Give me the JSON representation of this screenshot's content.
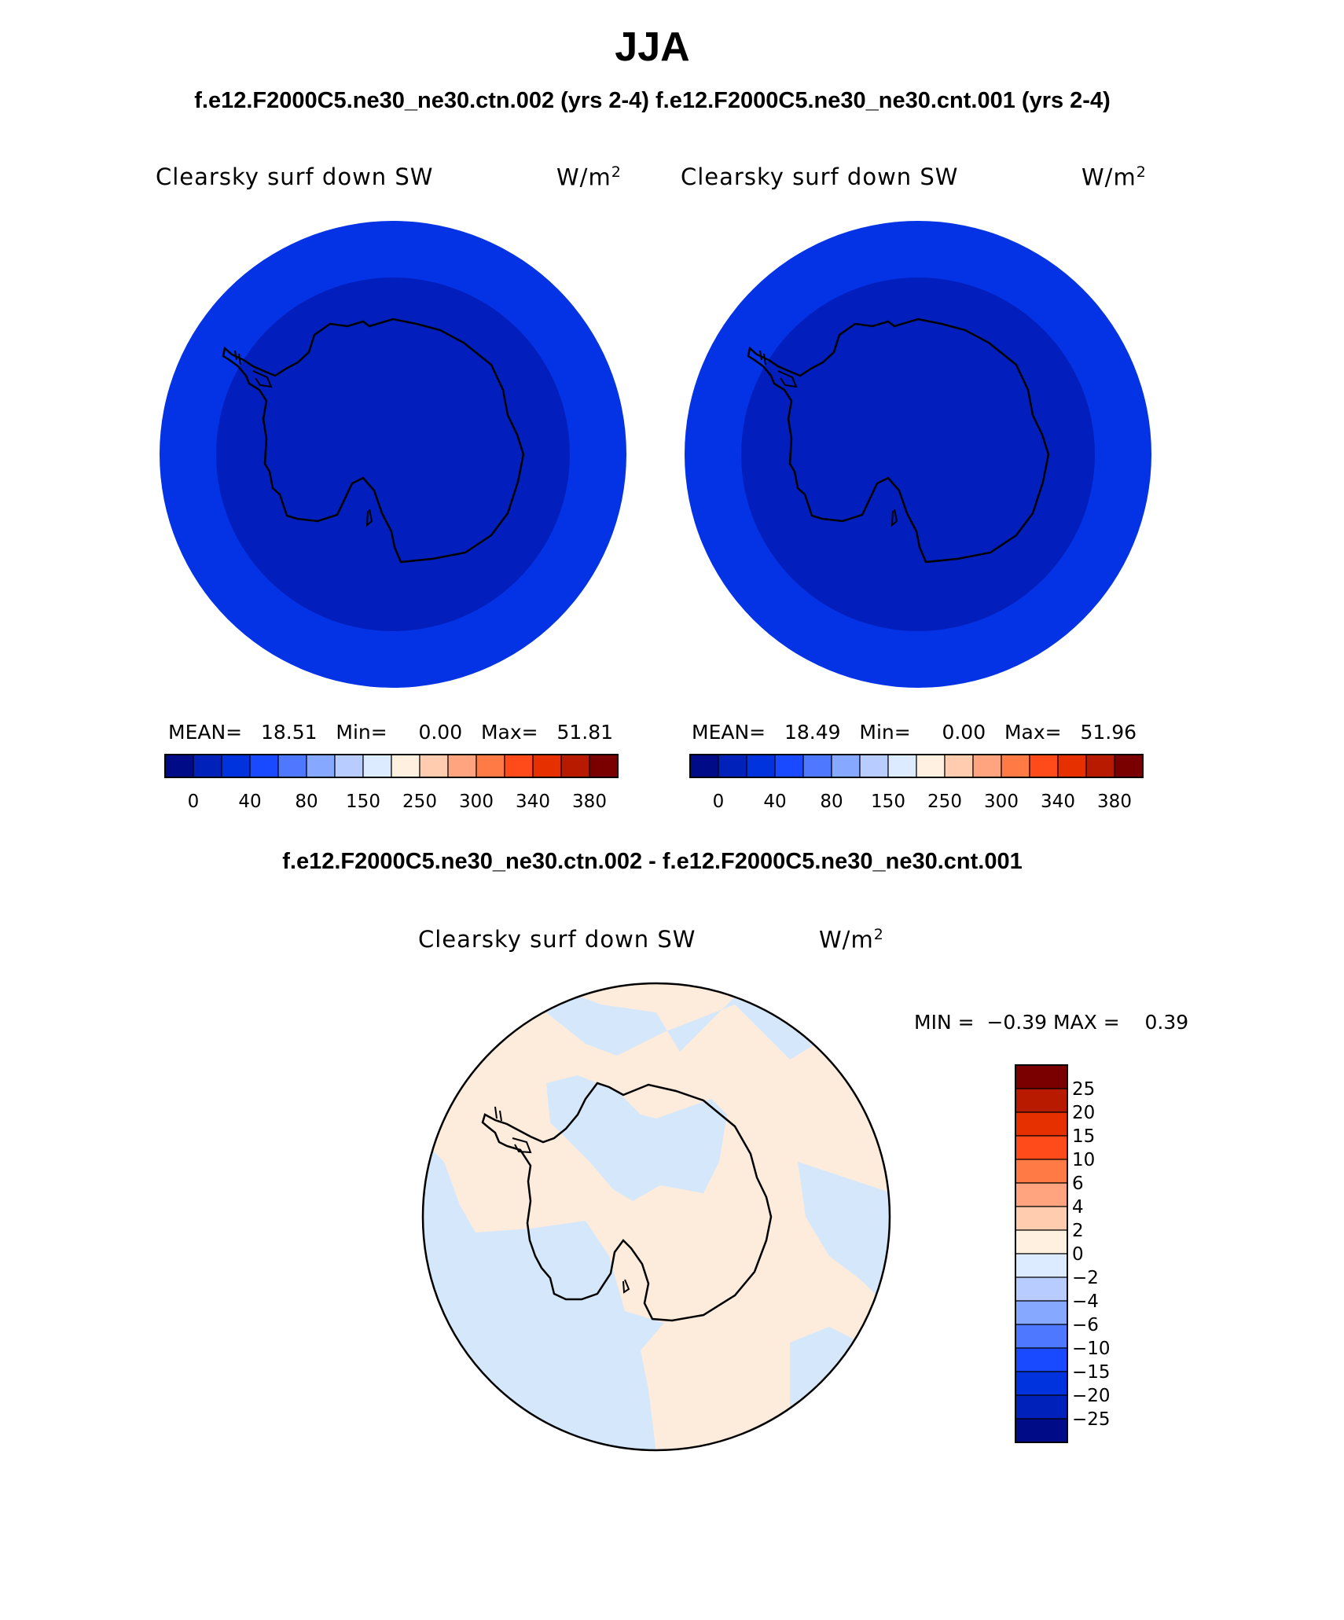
{
  "title": "JJA",
  "case_titles": "f.e12.F2000C5.ne30_ne30.ctn.002 (yrs 2-4) f.e12.F2000C5.ne30_ne30.cnt.001 (yrs 2-4)",
  "diff_title": "f.e12.F2000C5.ne30_ne30.ctn.002 - f.e12.F2000C5.ne30_ne30.cnt.001",
  "panels": [
    {
      "variable": "Clearsky surf down SW",
      "units": "W/m",
      "units_sup": "2",
      "mean_label": "MEAN=",
      "mean": "18.51",
      "min_label": "Min=",
      "min": "0.00",
      "max_label": "Max=",
      "max": "51.81"
    },
    {
      "variable": "Clearsky surf down SW",
      "units": "W/m",
      "units_sup": "2",
      "mean_label": "MEAN=",
      "mean": "18.49",
      "min_label": "Min=",
      "min": "0.00",
      "max_label": "Max=",
      "max": "51.96"
    }
  ],
  "diff_panel": {
    "variable": "Clearsky surf down SW",
    "units": "W/m",
    "units_sup": "2",
    "min_label": "MIN =",
    "min": "−0.39",
    "max_label": "MAX =",
    "max": "0.39"
  },
  "colorbar_top": {
    "colors": [
      "#000b88",
      "#0022bb",
      "#0033dd",
      "#1a4aff",
      "#4d78ff",
      "#86a8ff",
      "#b8ccff",
      "#dcebff",
      "#fff0e0",
      "#ffccb0",
      "#ffa47e",
      "#ff7a45",
      "#ff4a1a",
      "#e63000",
      "#b81a00",
      "#7a0000"
    ],
    "tick_labels": [
      "0",
      "40",
      "80",
      "150",
      "250",
      "300",
      "340",
      "380"
    ]
  },
  "colorbar_diff": {
    "colors": [
      "#7a0000",
      "#b81a00",
      "#e63000",
      "#ff4a1a",
      "#ff7a45",
      "#ffa47e",
      "#ffccb0",
      "#fff0e0",
      "#dcebff",
      "#b8ccff",
      "#86a8ff",
      "#4d78ff",
      "#1a4aff",
      "#0033dd",
      "#0022bb",
      "#000b88"
    ],
    "tick_labels": [
      "25",
      "20",
      "15",
      "10",
      "6",
      "4",
      "2",
      "0",
      "−2",
      "−4",
      "−6",
      "−10",
      "−15",
      "−20",
      "−25"
    ]
  },
  "map_colors": {
    "outer_ring": "#0433e6",
    "inner_fill": "#021fbd",
    "diff_positive": "#fdebdc",
    "diff_negative": "#d5e8fb"
  }
}
